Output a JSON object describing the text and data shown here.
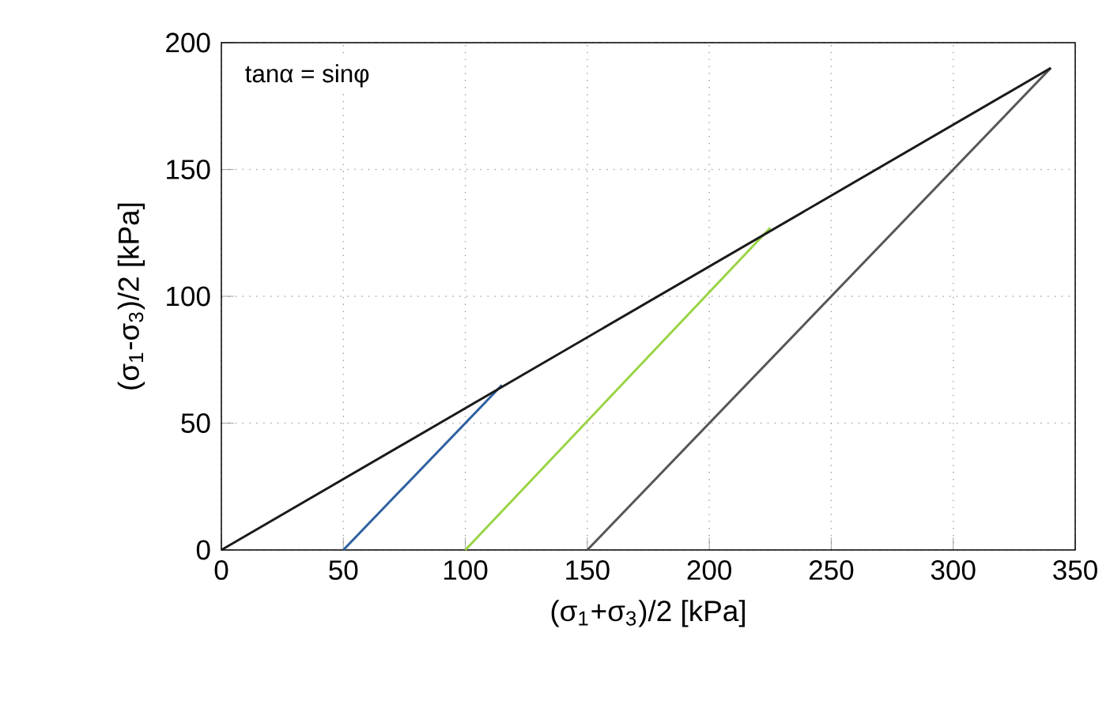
{
  "chart_data": {
    "type": "line",
    "xlabel": "(σ$_{1}$+σ$_{3}$)/2 [kPa]",
    "ylabel": "(σ$_{1}$-σ$_{3}$)/2 [kPa]",
    "annotations": [
      "tanα = sinφ"
    ],
    "xlim": [
      0,
      350
    ],
    "ylim": [
      0,
      200
    ],
    "xticks": [
      0,
      50,
      100,
      150,
      200,
      250,
      300,
      350
    ],
    "yticks": [
      0,
      50,
      100,
      150,
      200
    ],
    "grid": true,
    "line_style": "solid",
    "series": [
      {
        "color": "#2d5fa0",
        "x": [
          50,
          115
        ],
        "values": [
          0,
          65
        ]
      },
      {
        "color": "#99d444",
        "x": [
          100,
          225
        ],
        "values": [
          0,
          127
        ]
      },
      {
        "color": "#555555",
        "x": [
          150,
          340
        ],
        "values": [
          0,
          190
        ]
      },
      {
        "color": "#1a1a1a",
        "x": [
          0,
          340
        ],
        "values": [
          0,
          190
        ]
      }
    ]
  }
}
